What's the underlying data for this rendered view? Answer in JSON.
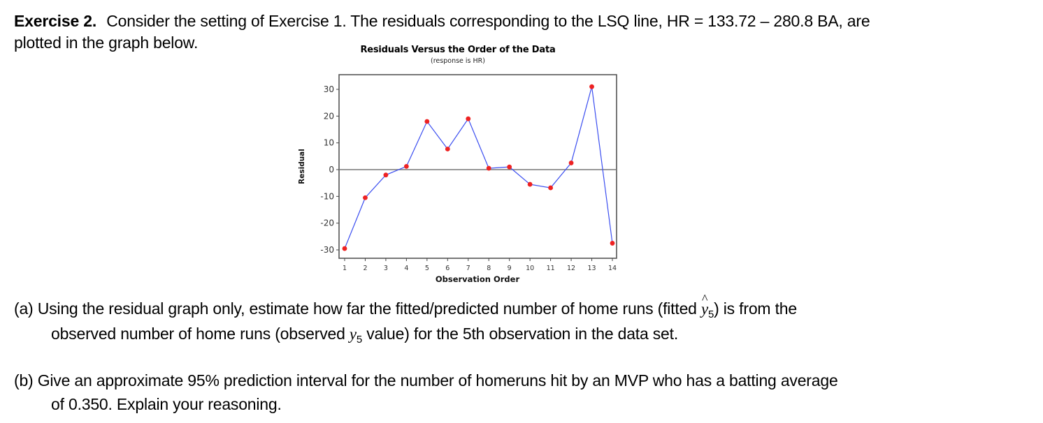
{
  "exercise": {
    "label": "Exercise 2.",
    "intro_line1": "Consider the setting of Exercise 1.  The residuals corresponding to the LSQ line,  HR = 133.72  –  280.8 BA, are",
    "intro_line2": "plotted in the graph below."
  },
  "questions": {
    "a": {
      "line1_pre": "(a) Using the residual graph only,  estimate how far the  fitted/predicted number of home runs (fitted ",
      "line1_math": "y",
      "line1_sub": "5",
      "line1_post": ") is from the",
      "line2_pre": "observed number of home runs (observed ",
      "line2_math": "y",
      "line2_sub": "5",
      "line2_post": " value)  for the 5th observation in the data set."
    },
    "b": {
      "line1": "(b) Give an approximate 95% prediction interval for the number of homeruns hit by an MVP who has a batting average",
      "line2": "of  0.350.   Explain your reasoning."
    }
  },
  "chart_data": {
    "type": "line",
    "title": "Residuals Versus the Order of the Data",
    "subtitle": "(response is HR)",
    "xlabel": "Observation Order",
    "ylabel": "Residual",
    "x": [
      1,
      2,
      3,
      4,
      5,
      6,
      7,
      8,
      9,
      10,
      11,
      12,
      13,
      14
    ],
    "series": [
      {
        "name": "Residual",
        "values": [
          -29.5,
          -10.5,
          -2,
          1.2,
          18,
          7.7,
          19,
          0.5,
          1,
          -5.5,
          -6.8,
          2.5,
          31,
          -27.5
        ]
      }
    ],
    "xticks": [
      1,
      2,
      3,
      4,
      5,
      6,
      7,
      8,
      9,
      10,
      11,
      12,
      13,
      14
    ],
    "yticks": [
      30,
      20,
      10,
      0,
      -10,
      -20,
      -30
    ],
    "xlim": [
      0.75,
      14.25
    ],
    "ylim": [
      -33,
      35
    ],
    "reference_line_y": 0,
    "grid": false,
    "legend": null,
    "colors": {
      "line": "#3b4ef0",
      "marker": "#ee2222",
      "reference": "#777777",
      "frame": "#555555"
    }
  }
}
